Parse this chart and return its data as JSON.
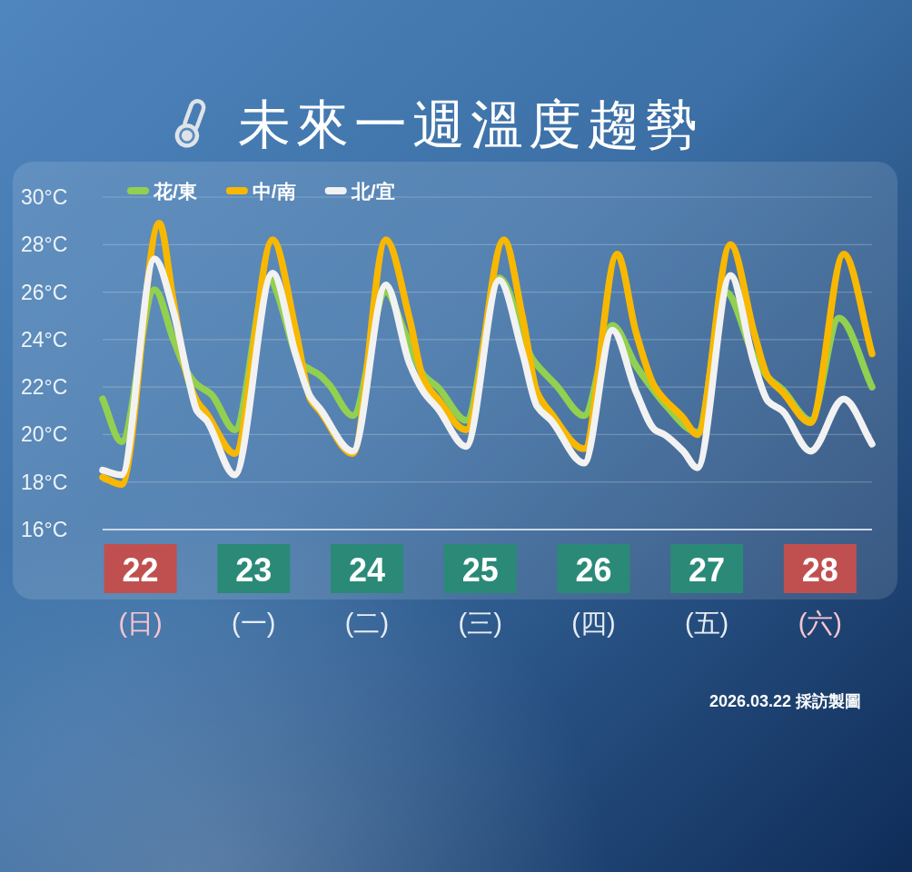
{
  "chart_data": {
    "type": "line",
    "title": "未來一週溫度趨勢",
    "annotations": [
      "2026.03.22 採訪製圖"
    ],
    "xlim": [
      "2026-03-22T04:00",
      "2026-03-28T23:00"
    ],
    "xticks": [
      {
        "value": "2026-03-22T12:00",
        "label": "22\n(日)"
      },
      {
        "value": "2026-03-23T12:00",
        "label": "23\n(一)"
      },
      {
        "value": "2026-03-24T12:00",
        "label": "24\n(二)"
      },
      {
        "value": "2026-03-25T12:00",
        "label": "25\n(三)"
      },
      {
        "value": "2026-03-26T12:00",
        "label": "26\n(四)"
      },
      {
        "value": "2026-03-27T12:00",
        "label": "27\n(五)"
      },
      {
        "value": "2026-03-28T12:00",
        "label": "28\n(六)"
      }
    ],
    "ylim": [
      16,
      30
    ],
    "yticks": [
      {
        "value": 16,
        "label": "16°C"
      },
      {
        "value": 18,
        "label": "18°C"
      },
      {
        "value": 20,
        "label": "20°C"
      },
      {
        "value": 22,
        "label": "22°C"
      },
      {
        "value": 24,
        "label": "24°C"
      },
      {
        "value": 26,
        "label": "26°C"
      },
      {
        "value": 28,
        "label": "28°C"
      },
      {
        "value": 30,
        "label": "30°C"
      }
    ],
    "grid": "y",
    "legend": "top left",
    "line_style": "solid",
    "series": [
      {
        "name": "花/東",
        "color": "#92d050",
        "x": [
          "2026-03-22T04:00",
          "2026-03-22T08:00",
          "2026-03-22T15:00",
          "2026-03-22T19:00",
          "2026-03-22T22:00",
          "2026-03-23T00:00",
          "2026-03-23T03:00",
          "2026-03-23T08:00",
          "2026-03-23T15:00",
          "2026-03-23T22:00",
          "2026-03-24T02:00",
          "2026-03-24T04:00",
          "2026-03-24T09:00",
          "2026-03-24T16:00",
          "2026-03-24T20:00",
          "2026-03-25T00:00",
          "2026-03-25T03:00",
          "2026-03-25T09:00",
          "2026-03-25T16:00",
          "2026-03-25T23:00",
          "2026-03-26T02:00",
          "2026-03-26T04:00",
          "2026-03-26T10:00",
          "2026-03-26T16:00",
          "2026-03-26T21:00",
          "2026-03-27T01:00",
          "2026-03-27T03:00",
          "2026-03-27T10:00",
          "2026-03-27T16:00",
          "2026-03-27T22:00",
          "2026-03-28T01:00",
          "2026-03-28T04:00",
          "2026-03-28T10:00",
          "2026-03-28T16:00",
          "2026-03-28T23:00"
        ],
        "values": [
          21.5,
          19.7,
          26.1,
          24.0,
          22.6,
          22.1,
          21.7,
          20.2,
          26.6,
          23.0,
          22.5,
          22.1,
          20.8,
          26.0,
          24.3,
          22.5,
          22.0,
          20.6,
          26.6,
          23.2,
          22.5,
          22.1,
          20.8,
          24.6,
          22.9,
          21.8,
          21.3,
          20.1,
          26.0,
          23.3,
          22.4,
          21.9,
          20.6,
          24.9,
          22.0
        ]
      },
      {
        "name": "中/南",
        "color": "#f8b800",
        "x": [
          "2026-03-22T04:00",
          "2026-03-22T08:00",
          "2026-03-22T16:00",
          "2026-03-22T19:00",
          "2026-03-22T22:00",
          "2026-03-23T00:00",
          "2026-03-23T02:00",
          "2026-03-23T08:00",
          "2026-03-23T16:00",
          "2026-03-23T21:00",
          "2026-03-24T00:00",
          "2026-03-24T02:00",
          "2026-03-24T09:00",
          "2026-03-24T16:00",
          "2026-03-24T21:00",
          "2026-03-25T00:00",
          "2026-03-25T03:00",
          "2026-03-25T09:00",
          "2026-03-25T17:00",
          "2026-03-25T21:00",
          "2026-03-26T00:00",
          "2026-03-26T03:00",
          "2026-03-26T10:00",
          "2026-03-26T17:00",
          "2026-03-26T21:00",
          "2026-03-27T01:00",
          "2026-03-27T07:00",
          "2026-03-27T10:00",
          "2026-03-27T17:00",
          "2026-03-27T22:00",
          "2026-03-28T01:00",
          "2026-03-28T04:00",
          "2026-03-28T10:00",
          "2026-03-28T17:00",
          "2026-03-28T23:00"
        ],
        "values": [
          18.2,
          17.9,
          28.9,
          25.6,
          22.4,
          21.4,
          20.9,
          19.2,
          28.2,
          24.3,
          21.5,
          21.0,
          19.2,
          28.2,
          24.9,
          22.3,
          21.5,
          20.2,
          28.2,
          24.9,
          21.8,
          20.9,
          19.4,
          27.6,
          24.3,
          22.0,
          20.7,
          20.0,
          28.0,
          24.3,
          22.4,
          21.8,
          20.5,
          27.6,
          23.4
        ]
      },
      {
        "name": "北/宜",
        "color": "#f2f2f2",
        "x": [
          "2026-03-22T04:00",
          "2026-03-22T08:00",
          "2026-03-22T15:00",
          "2026-03-22T19:00",
          "2026-03-22T22:00",
          "2026-03-23T00:00",
          "2026-03-23T02:00",
          "2026-03-23T08:00",
          "2026-03-23T16:00",
          "2026-03-23T21:00",
          "2026-03-24T00:00",
          "2026-03-24T02:00",
          "2026-03-24T09:00",
          "2026-03-24T16:00",
          "2026-03-24T21:00",
          "2026-03-25T00:00",
          "2026-03-25T03:00",
          "2026-03-25T09:00",
          "2026-03-25T16:00",
          "2026-03-25T21:00",
          "2026-03-26T00:00",
          "2026-03-26T03:00",
          "2026-03-26T10:00",
          "2026-03-26T16:00",
          "2026-03-26T21:00",
          "2026-03-27T01:00",
          "2026-03-27T03:00",
          "2026-03-27T07:00",
          "2026-03-27T10:00",
          "2026-03-27T17:00",
          "2026-03-27T22:00",
          "2026-03-28T01:00",
          "2026-03-28T04:00",
          "2026-03-28T10:00",
          "2026-03-28T17:00",
          "2026-03-28T23:00"
        ],
        "values": [
          18.5,
          18.3,
          27.4,
          25.2,
          22.5,
          21.0,
          20.6,
          18.3,
          26.8,
          23.3,
          21.6,
          21.1,
          19.3,
          26.3,
          23.0,
          21.8,
          21.1,
          19.5,
          26.5,
          23.4,
          21.2,
          20.6,
          18.8,
          24.4,
          21.8,
          20.2,
          20.0,
          19.3,
          18.6,
          26.7,
          23.0,
          21.4,
          21.0,
          19.3,
          21.5,
          19.6
        ]
      }
    ]
  }
}
